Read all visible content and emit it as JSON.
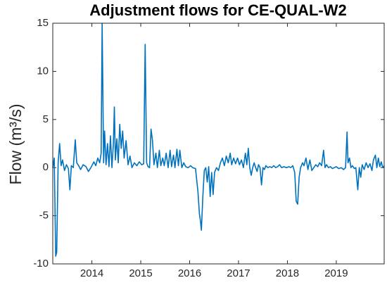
{
  "chart_data": {
    "type": "line",
    "title": "Adjustment flows for CE-QUAL-W2",
    "ylabel": "Flow (m³/s)",
    "color": "#0072bd",
    "xlim": [
      2013.2,
      2019.98
    ],
    "xticks": [
      2014,
      2015,
      2016,
      2017,
      2018,
      2019
    ],
    "ylim": [
      -10,
      15
    ],
    "yticks": [
      -10,
      -5,
      0,
      5,
      10,
      15
    ],
    "grid": false,
    "x": [
      2013.2,
      2013.23,
      2013.26,
      2013.28,
      2013.31,
      2013.34,
      2013.37,
      2013.4,
      2013.44,
      2013.48,
      2013.52,
      2013.55,
      2013.58,
      2013.62,
      2013.66,
      2013.69,
      2013.73,
      2013.77,
      2013.82,
      2013.88,
      2013.93,
      2013.98,
      2014.04,
      2014.08,
      2014.12,
      2014.16,
      2014.19,
      2014.21,
      2014.24,
      2014.26,
      2014.29,
      2014.32,
      2014.35,
      2014.38,
      2014.41,
      2014.44,
      2014.46,
      2014.48,
      2014.51,
      2014.54,
      2014.57,
      2014.6,
      2014.63,
      2014.66,
      2014.7,
      2014.74,
      2014.78,
      2014.82,
      2014.87,
      2014.92,
      2014.97,
      2015.02,
      2015.06,
      2015.09,
      2015.12,
      2015.15,
      2015.18,
      2015.21,
      2015.24,
      2015.27,
      2015.31,
      2015.34,
      2015.38,
      2015.41,
      2015.45,
      2015.48,
      2015.52,
      2015.56,
      2015.6,
      2015.63,
      2015.67,
      2015.7,
      2015.74,
      2015.77,
      2015.8,
      2015.84,
      2015.88,
      2015.92,
      2015.97,
      2016.02,
      2016.06,
      2016.12,
      2016.17,
      2016.2,
      2016.22,
      2016.24,
      2016.27,
      2016.3,
      2016.33,
      2016.36,
      2016.39,
      2016.42,
      2016.45,
      2016.48,
      2016.51,
      2016.55,
      2016.59,
      2016.63,
      2016.67,
      2016.71,
      2016.75,
      2016.79,
      2016.83,
      2016.86,
      2016.9,
      2016.94,
      2016.98,
      2017.02,
      2017.06,
      2017.1,
      2017.14,
      2017.17,
      2017.2,
      2017.23,
      2017.26,
      2017.29,
      2017.32,
      2017.35,
      2017.38,
      2017.41,
      2017.44,
      2017.47,
      2017.5,
      2017.53,
      2017.56,
      2017.6,
      2017.64,
      2017.68,
      2017.72,
      2017.76,
      2017.8,
      2017.84,
      2017.88,
      2017.93,
      2017.98,
      2018.03,
      2018.07,
      2018.11,
      2018.15,
      2018.18,
      2018.21,
      2018.24,
      2018.27,
      2018.31,
      2018.34,
      2018.38,
      2018.42,
      2018.46,
      2018.5,
      2018.54,
      2018.58,
      2018.62,
      2018.66,
      2018.7,
      2018.74,
      2018.77,
      2018.8,
      2018.84,
      2018.88,
      2018.92,
      2018.96,
      2019.0,
      2019.05,
      2019.1,
      2019.15,
      2019.19,
      2019.22,
      2019.24,
      2019.27,
      2019.3,
      2019.33,
      2019.37,
      2019.4,
      2019.44,
      2019.47,
      2019.5,
      2019.53,
      2019.57,
      2019.61,
      2019.65,
      2019.69,
      2019.73,
      2019.76,
      2019.8,
      2019.83,
      2019.86,
      2019.89,
      2019.92,
      2019.95,
      2019.98
    ],
    "values": [
      0,
      1.0,
      -9.2,
      -8.8,
      0.5,
      2.5,
      0.2,
      0.8,
      -0.3,
      0.3,
      -0.1,
      -2.3,
      0.2,
      0,
      2.9,
      0.5,
      0.2,
      -0.2,
      0.3,
      0.1,
      -0.4,
      0,
      0.6,
      0.2,
      1.0,
      0.5,
      1.5,
      15,
      0.5,
      3.8,
      0.3,
      2.5,
      0.1,
      3.3,
      0,
      2.5,
      6.3,
      0.8,
      3.0,
      0.5,
      4.5,
      2.0,
      3.8,
      1.0,
      2.8,
      0.3,
      1.2,
      0,
      0.5,
      0.2,
      0.6,
      0.3,
      0.4,
      12.8,
      0.5,
      0.1,
      0,
      4.0,
      2.8,
      0.3,
      1.5,
      0,
      1.8,
      0.2,
      1.0,
      0.2,
      1.5,
      0,
      1.8,
      0.1,
      1.3,
      0,
      1.9,
      0.2,
      1.8,
      0,
      0.5,
      0.1,
      0,
      0.2,
      0,
      -0.1,
      -2.5,
      -4.8,
      -5.5,
      -6.5,
      -3.0,
      -0.3,
      0,
      -1.5,
      0.1,
      -3.0,
      -0.5,
      -2.8,
      -0.5,
      0,
      -0.3,
      0.5,
      1.0,
      0.2,
      1.2,
      0.5,
      1.5,
      0.3,
      1.0,
      0.4,
      1.0,
      0.3,
      0.8,
      0,
      1.5,
      0.3,
      2.0,
      0,
      -0.8,
      0,
      0.5,
      0,
      -0.4,
      0.3,
      0,
      -1.8,
      0,
      -0.2,
      0.2,
      0,
      0.1,
      0,
      0.2,
      0,
      0.1,
      0.3,
      0,
      0.1,
      0,
      0.1,
      0,
      0.2,
      -0.5,
      -3.5,
      -3.8,
      -1.0,
      0,
      0.5,
      0.2,
      1.0,
      -0.2,
      0.8,
      -0.3,
      0,
      0.3,
      0.1,
      0.5,
      0.2,
      1.8,
      0,
      0.3,
      0,
      0.1,
      -0.1,
      0,
      0.1,
      -0.1,
      0,
      -0.2,
      0,
      3.7,
      0.5,
      1.0,
      0,
      0.2,
      -0.1,
      0,
      -2.3,
      0,
      -1.0,
      0.3,
      -0.2,
      0.5,
      0,
      0.4,
      -0.3,
      0.8,
      1.3,
      0,
      1.0,
      0.1,
      0.6,
      0,
      0.2
    ]
  }
}
